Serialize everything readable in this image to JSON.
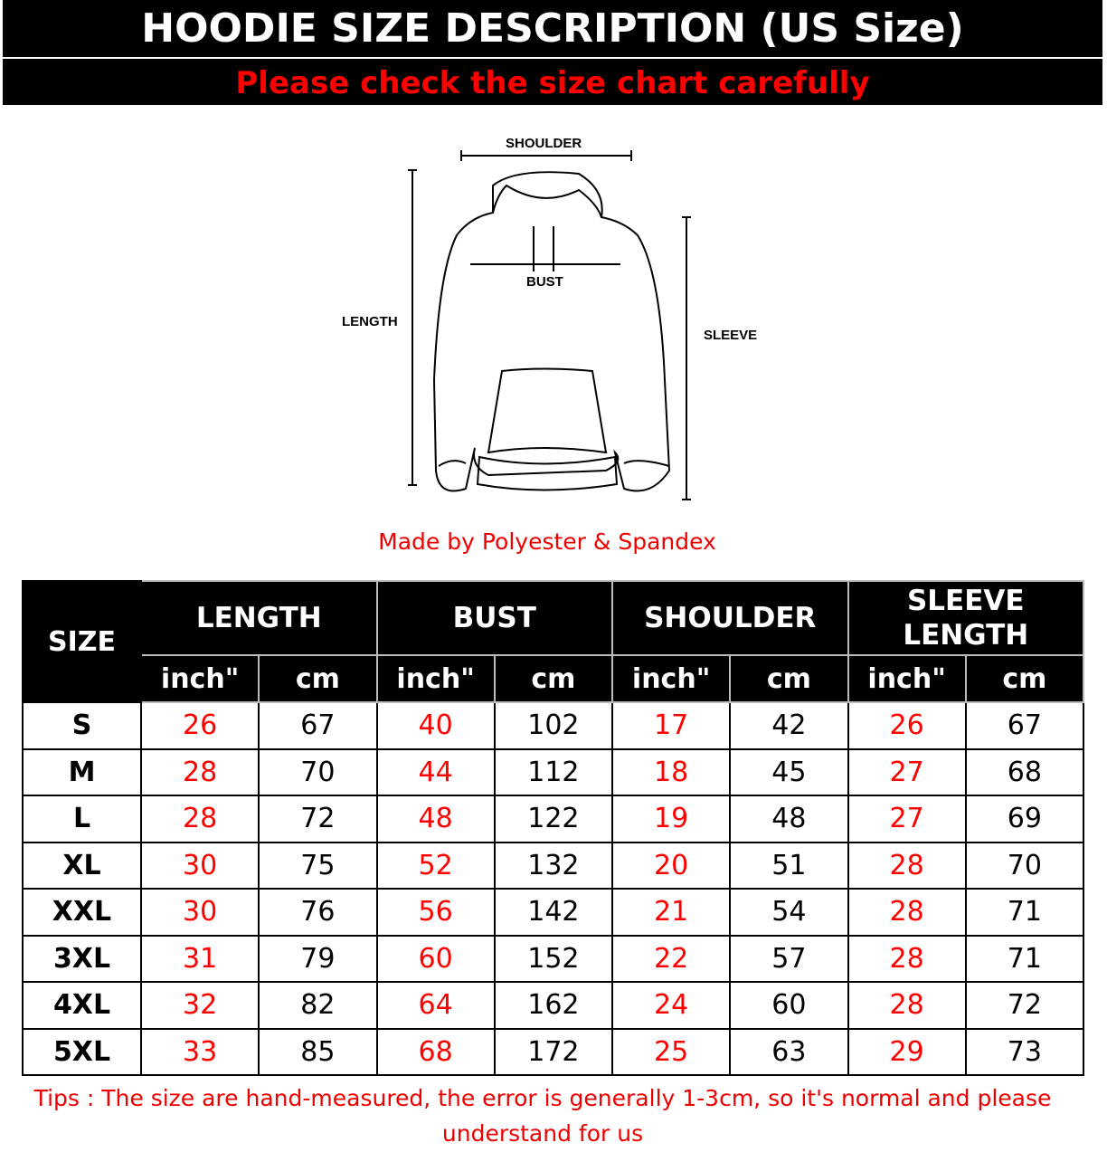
{
  "title": "HOODIE SIZE DESCRIPTION (US Size)",
  "subtitle": "Please check the size chart carefully",
  "diagram": {
    "shoulder": "SHOULDER",
    "bust": "BUST",
    "length": "LENGTH",
    "sleeve": "SLEEVE"
  },
  "material": "Made by Polyester & Spandex",
  "table": {
    "size_header": "SIZE",
    "groups": [
      "LENGTH",
      "BUST",
      "SHOULDER",
      "SLEEVE LENGTH"
    ],
    "units": [
      "inch\"",
      "cm"
    ],
    "rows": [
      [
        "S",
        "26",
        "67",
        "40",
        "102",
        "17",
        "42",
        "26",
        "67"
      ],
      [
        "M",
        "28",
        "70",
        "44",
        "112",
        "18",
        "45",
        "27",
        "68"
      ],
      [
        "L",
        "28",
        "72",
        "48",
        "122",
        "19",
        "48",
        "27",
        "69"
      ],
      [
        "XL",
        "30",
        "75",
        "52",
        "132",
        "20",
        "51",
        "28",
        "70"
      ],
      [
        "XXL",
        "30",
        "76",
        "56",
        "142",
        "21",
        "54",
        "28",
        "71"
      ],
      [
        "3XL",
        "31",
        "79",
        "60",
        "152",
        "22",
        "57",
        "28",
        "71"
      ],
      [
        "4XL",
        "32",
        "82",
        "64",
        "162",
        "24",
        "60",
        "28",
        "72"
      ],
      [
        "5XL",
        "33",
        "85",
        "68",
        "172",
        "25",
        "63",
        "29",
        "73"
      ]
    ]
  },
  "tips": "Tips : The size are hand-measured, the error is generally 1-3cm, so it's normal and please understand for us",
  "colors": {
    "accent": "#ff0000",
    "header_bg": "#000000"
  }
}
